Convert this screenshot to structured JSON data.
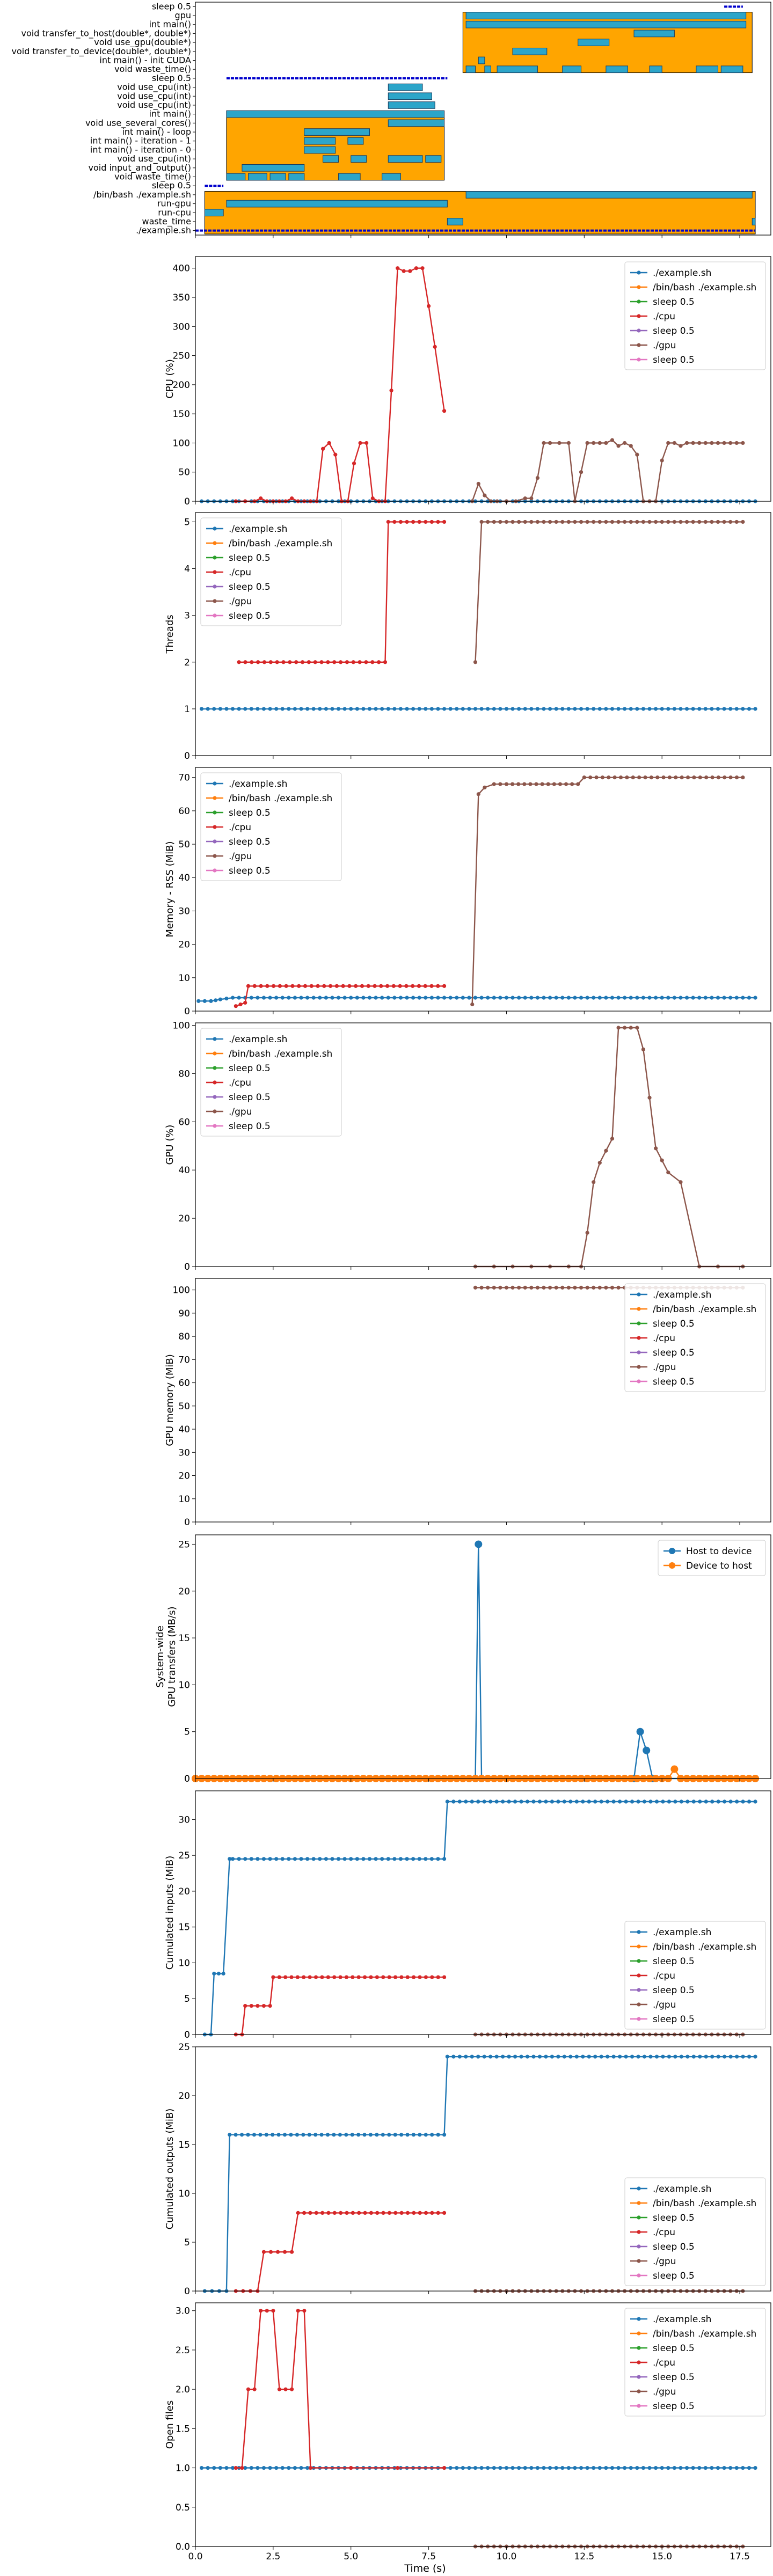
{
  "xaxis": {
    "label": "Time (s)",
    "xlim": [
      0,
      18.5
    ],
    "ticks": [
      0.0,
      2.5,
      5.0,
      7.5,
      10.0,
      12.5,
      15.0,
      17.5
    ]
  },
  "colors": {
    "./example.sh": "#1f77b4",
    "/bin/bash ./example.sh": "#ff7f0e",
    "sleep 0.5 (a)": "#2ca02c",
    "./cpu": "#d62728",
    "sleep 0.5 (b)": "#9467bd",
    "./gpu": "#8c564b",
    "sleep 0.5 (c)": "#e377c2",
    "timeline_fill": "#ffa500",
    "timeline_bar": "#2ca5c9",
    "timeline_bar_edge": "#1a3a5a",
    "timeline_line": "#0000cc"
  },
  "legend_labels": [
    "./example.sh",
    "/bin/bash ./example.sh",
    "sleep 0.5",
    "./cpu",
    "sleep 0.5",
    "./gpu",
    "sleep 0.5"
  ],
  "chart_data": [
    {
      "type": "timeline",
      "ylabels": [
        "sleep 0.5",
        "gpu",
        "int main()",
        "void transfer_to_host(double*, double*)",
        "void use_gpu(double*)",
        "void transfer_to_device(double*, double*)",
        "int main() - init CUDA",
        "void waste_time()",
        "sleep 0.5",
        "void use_cpu(int)",
        "void use_cpu(int)",
        "void use_cpu(int)",
        "int main()",
        "void use_several_cores()",
        "int main() - loop",
        "int main() - iteration - 1",
        "int main() - iteration - 0",
        "void use_cpu(int)",
        "void input_and_output()",
        "void waste_time()",
        "sleep 0.5",
        "/bin/bash ./example.sh",
        "run-gpu",
        "run-cpu",
        "waste_time",
        "./example.sh"
      ],
      "xlim": [
        0,
        18.5
      ],
      "lines": [
        {
          "row": 0,
          "start": 17.0,
          "end": 17.6
        },
        {
          "row": 8,
          "start": 1.0,
          "end": 8.1
        },
        {
          "row": 20,
          "start": 0.3,
          "end": 0.9
        },
        {
          "row": 25,
          "start": 0.0,
          "end": 18.0
        }
      ],
      "blocks": [
        {
          "row_start": 1,
          "row_end": 7,
          "start": 8.6,
          "end": 17.9
        },
        {
          "row_start": 12,
          "row_end": 19,
          "start": 1.0,
          "end": 8.0
        },
        {
          "row_start": 21,
          "row_end": 25,
          "start": 0.3,
          "end": 18.0
        }
      ],
      "bars": [
        {
          "row": 1,
          "start": 8.7,
          "end": 17.7
        },
        {
          "row": 2,
          "start": 8.7,
          "end": 17.7
        },
        {
          "row": 3,
          "start": 14.1,
          "end": 15.4
        },
        {
          "row": 4,
          "start": 12.3,
          "end": 13.3
        },
        {
          "row": 5,
          "start": 10.2,
          "end": 11.3
        },
        {
          "row": 6,
          "start": 9.1,
          "end": 9.3
        },
        {
          "row": 7,
          "start": 8.7,
          "end": 9.0
        },
        {
          "row": 7,
          "start": 9.3,
          "end": 9.5
        },
        {
          "row": 7,
          "start": 9.7,
          "end": 11.0
        },
        {
          "row": 7,
          "start": 11.8,
          "end": 12.4
        },
        {
          "row": 7,
          "start": 13.2,
          "end": 13.9
        },
        {
          "row": 7,
          "start": 14.6,
          "end": 15.0
        },
        {
          "row": 7,
          "start": 16.1,
          "end": 16.8
        },
        {
          "row": 7,
          "start": 16.9,
          "end": 17.6
        },
        {
          "row": 9,
          "start": 6.2,
          "end": 7.3
        },
        {
          "row": 10,
          "start": 6.2,
          "end": 7.6
        },
        {
          "row": 11,
          "start": 6.2,
          "end": 7.7
        },
        {
          "row": 12,
          "start": 1.0,
          "end": 8.0
        },
        {
          "row": 13,
          "start": 6.2,
          "end": 8.0
        },
        {
          "row": 14,
          "start": 3.5,
          "end": 5.6
        },
        {
          "row": 15,
          "start": 3.5,
          "end": 4.5
        },
        {
          "row": 15,
          "start": 4.9,
          "end": 5.4
        },
        {
          "row": 16,
          "start": 3.5,
          "end": 4.5
        },
        {
          "row": 17,
          "start": 4.1,
          "end": 4.6
        },
        {
          "row": 17,
          "start": 5.0,
          "end": 5.5
        },
        {
          "row": 17,
          "start": 6.2,
          "end": 7.3
        },
        {
          "row": 17,
          "start": 7.4,
          "end": 7.9
        },
        {
          "row": 18,
          "start": 1.5,
          "end": 3.5
        },
        {
          "row": 19,
          "start": 1.0,
          "end": 1.6
        },
        {
          "row": 19,
          "start": 1.7,
          "end": 2.3
        },
        {
          "row": 19,
          "start": 2.4,
          "end": 2.9
        },
        {
          "row": 19,
          "start": 3.0,
          "end": 3.5
        },
        {
          "row": 19,
          "start": 4.6,
          "end": 5.3
        },
        {
          "row": 19,
          "start": 6.0,
          "end": 6.6
        },
        {
          "row": 21,
          "start": 8.7,
          "end": 17.9
        },
        {
          "row": 22,
          "start": 1.0,
          "end": 8.1
        },
        {
          "row": 23,
          "start": 0.3,
          "end": 0.9
        },
        {
          "row": 24,
          "start": 8.1,
          "end": 8.6
        },
        {
          "row": 24,
          "start": 17.9,
          "end": 18.0
        }
      ]
    },
    {
      "type": "line",
      "ylabel": "CPU (%)",
      "ylim": [
        0,
        420
      ],
      "yticks": [
        0,
        50,
        100,
        150,
        200,
        250,
        300,
        350,
        400
      ],
      "legend": "top-right",
      "series": [
        {
          "name": "./example.sh",
          "x": [
            0.2,
            18.0
          ],
          "y": [
            0,
            0
          ],
          "color": "#1f77b4",
          "dense": true
        },
        {
          "name": "./cpu",
          "color": "#d62728",
          "x": [
            1.3,
            1.6,
            1.9,
            2.1,
            2.3,
            2.5,
            2.7,
            2.9,
            3.1,
            3.3,
            3.5,
            3.7,
            3.9,
            4.1,
            4.3,
            4.5,
            4.7,
            4.9,
            5.1,
            5.3,
            5.5,
            5.7,
            5.9,
            6.1,
            6.3,
            6.5,
            6.7,
            6.9,
            7.1,
            7.3,
            7.5,
            7.7,
            8.0
          ],
          "y": [
            0,
            0,
            0,
            5,
            0,
            0,
            0,
            0,
            5,
            0,
            0,
            0,
            0,
            90,
            100,
            80,
            0,
            0,
            65,
            100,
            100,
            5,
            0,
            0,
            190,
            400,
            395,
            395,
            400,
            400,
            335,
            265,
            155
          ]
        },
        {
          "name": "./gpu",
          "color": "#8c564b",
          "x": [
            8.9,
            9.1,
            9.3,
            9.5,
            9.7,
            10.0,
            10.3,
            10.6,
            10.8,
            11.0,
            11.2,
            11.4,
            11.7,
            12.0,
            12.2,
            12.4,
            12.6,
            12.8,
            13.0,
            13.2,
            13.4,
            13.6,
            13.8,
            14.0,
            14.2,
            14.4,
            14.6,
            14.8,
            15.0,
            15.2,
            15.4,
            15.6,
            15.8,
            16.0,
            16.2,
            16.4,
            16.6,
            16.8,
            17.0,
            17.2,
            17.4,
            17.6
          ],
          "y": [
            0,
            30,
            10,
            0,
            0,
            0,
            0,
            5,
            5,
            40,
            100,
            100,
            100,
            100,
            0,
            50,
            100,
            100,
            100,
            100,
            105,
            95,
            100,
            95,
            80,
            0,
            0,
            0,
            70,
            100,
            100,
            95,
            100,
            100,
            100,
            100,
            100,
            100,
            100,
            100,
            100,
            100
          ]
        }
      ]
    },
    {
      "type": "line",
      "ylabel": "Threads",
      "ylim": [
        0,
        5.2
      ],
      "yticks": [
        0,
        1,
        2,
        3,
        4,
        5
      ],
      "legend": "top-left",
      "series": [
        {
          "name": "./example.sh",
          "x": [
            0.2,
            18.0
          ],
          "y": [
            1,
            1
          ],
          "color": "#1f77b4",
          "dense": true
        },
        {
          "name": "./cpu",
          "x": [
            1.4,
            6.1,
            6.2,
            8.0
          ],
          "y": [
            2,
            2,
            5,
            5
          ],
          "color": "#d62728",
          "dense": true
        },
        {
          "name": "./gpu",
          "x": [
            9.0,
            9.2,
            17.6
          ],
          "y": [
            2,
            5,
            5
          ],
          "color": "#8c564b",
          "dense": true
        }
      ]
    },
    {
      "type": "line",
      "ylabel": "Memory - RSS (MiB)",
      "ylim": [
        0,
        73
      ],
      "yticks": [
        0,
        10,
        20,
        30,
        40,
        50,
        60,
        70
      ],
      "legend": "top-left",
      "series": [
        {
          "name": "./example.sh",
          "x": [
            0.1,
            0.5,
            0.8,
            1.2,
            18.0
          ],
          "y": [
            3,
            3,
            3.5,
            4,
            4
          ],
          "color": "#1f77b4",
          "dense": true
        },
        {
          "name": "./cpu",
          "x": [
            1.3,
            1.6,
            1.7,
            8.0
          ],
          "y": [
            1.5,
            2.5,
            7.5,
            7.5
          ],
          "color": "#d62728",
          "dense": true
        },
        {
          "name": "./gpu",
          "x": [
            8.9,
            9.1,
            9.3,
            9.6,
            10.0,
            12.3,
            12.5,
            17.6
          ],
          "y": [
            2,
            65,
            67,
            68,
            68,
            68,
            70,
            70
          ],
          "color": "#8c564b",
          "dense": true
        }
      ]
    },
    {
      "type": "line",
      "ylabel": "GPU (%)",
      "ylim": [
        0,
        101
      ],
      "yticks": [
        0,
        20,
        40,
        60,
        80,
        100
      ],
      "legend": "top-left",
      "series": [
        {
          "name": "./gpu",
          "color": "#8c564b",
          "x": [
            9.0,
            9.6,
            10.2,
            10.8,
            11.4,
            12.0,
            12.4,
            12.6,
            12.8,
            13.0,
            13.2,
            13.4,
            13.6,
            13.8,
            14.0,
            14.2,
            14.4,
            14.6,
            14.8,
            15.0,
            15.2,
            15.6,
            16.2,
            16.8,
            17.6
          ],
          "y": [
            0,
            0,
            0,
            0,
            0,
            0,
            0,
            14,
            35,
            43,
            48,
            53,
            99,
            99,
            99,
            99,
            90,
            70,
            49,
            44,
            39,
            35,
            0,
            0,
            0
          ]
        }
      ]
    },
    {
      "type": "line",
      "ylabel": "GPU memory (MiB)",
      "ylim": [
        0,
        105
      ],
      "yticks": [
        0,
        10,
        20,
        30,
        40,
        50,
        60,
        70,
        80,
        90,
        100
      ],
      "legend": "top-right",
      "series": [
        {
          "name": "./gpu",
          "x": [
            9.0,
            17.6
          ],
          "y": [
            101,
            101
          ],
          "color": "#8c564b",
          "dense": true
        }
      ]
    },
    {
      "type": "line",
      "ylabel": "System-wide\nGPU transfers (MB/s)",
      "ylim": [
        0,
        26
      ],
      "yticks": [
        0,
        5,
        10,
        15,
        20,
        25
      ],
      "legend": "top-right",
      "series": [
        {
          "name": "Host to device",
          "color": "#1f77b4",
          "x": [
            0.0,
            9.0,
            9.1,
            9.2,
            14.1,
            14.3,
            14.5,
            14.7,
            18.0
          ],
          "y": [
            0,
            0,
            25,
            0,
            0,
            5,
            3,
            0,
            0
          ]
        },
        {
          "name": "Device to host",
          "color": "#ff7f0e",
          "x": [
            0.0,
            15.2,
            15.4,
            15.6,
            18.0
          ],
          "y": [
            0,
            0,
            1,
            0,
            0
          ],
          "dense": true
        }
      ]
    },
    {
      "type": "line",
      "ylabel": "Cumulated inputs (MiB)",
      "ylim": [
        0,
        34
      ],
      "yticks": [
        0,
        5,
        10,
        15,
        20,
        25,
        30
      ],
      "legend": "bottom-right",
      "series": [
        {
          "name": "./example.sh",
          "x": [
            0.3,
            0.5,
            0.6,
            0.9,
            1.1,
            1.2,
            8.0,
            8.1,
            18.0
          ],
          "y": [
            0,
            0,
            8.5,
            8.5,
            24.5,
            24.5,
            24.5,
            32.5,
            32.5
          ],
          "color": "#1f77b4",
          "dense": true
        },
        {
          "name": "./cpu",
          "x": [
            1.3,
            1.5,
            1.6,
            2.4,
            2.5,
            8.0
          ],
          "y": [
            0,
            0,
            4,
            4,
            8,
            8
          ],
          "color": "#d62728",
          "dense": true
        },
        {
          "name": "./gpu",
          "x": [
            9.0,
            17.6
          ],
          "y": [
            0,
            0
          ],
          "color": "#8c564b",
          "dense": true
        }
      ]
    },
    {
      "type": "line",
      "ylabel": "Cumulated outputs (MiB)",
      "ylim": [
        0,
        25
      ],
      "yticks": [
        0,
        5,
        10,
        15,
        20,
        25
      ],
      "legend": "bottom-right",
      "series": [
        {
          "name": "./example.sh",
          "x": [
            0.3,
            1.0,
            1.1,
            8.0,
            8.1,
            18.0
          ],
          "y": [
            0,
            0,
            16,
            16,
            24,
            24
          ],
          "color": "#1f77b4",
          "dense": true
        },
        {
          "name": "./cpu",
          "x": [
            1.3,
            2.0,
            2.2,
            3.1,
            3.3,
            8.0
          ],
          "y": [
            0,
            0,
            4,
            4,
            8,
            8
          ],
          "color": "#d62728",
          "dense": true
        },
        {
          "name": "./gpu",
          "x": [
            9.0,
            17.6
          ],
          "y": [
            0,
            0
          ],
          "color": "#8c564b",
          "dense": true
        }
      ]
    },
    {
      "type": "line",
      "ylabel": "Open files",
      "ylim": [
        0,
        3.1
      ],
      "yticks": [
        0.0,
        0.5,
        1.0,
        1.5,
        2.0,
        2.5,
        3.0
      ],
      "legend": "top-right",
      "series": [
        {
          "name": "./example.sh",
          "x": [
            0.2,
            18.0
          ],
          "y": [
            1,
            1
          ],
          "color": "#1f77b4",
          "dense": true
        },
        {
          "name": "./cpu",
          "color": "#d62728",
          "x": [
            1.3,
            1.5,
            1.7,
            1.9,
            2.1,
            2.3,
            2.5,
            2.7,
            2.9,
            3.1,
            3.3,
            3.5,
            3.7,
            5.0,
            6.5,
            8.0
          ],
          "y": [
            1,
            1,
            2,
            2,
            3,
            3,
            3,
            2,
            2,
            2,
            3,
            3,
            1,
            1,
            1,
            1
          ]
        },
        {
          "name": "./gpu",
          "x": [
            9.0,
            17.6
          ],
          "y": [
            0,
            0
          ],
          "color": "#8c564b",
          "dense": true
        }
      ]
    }
  ]
}
